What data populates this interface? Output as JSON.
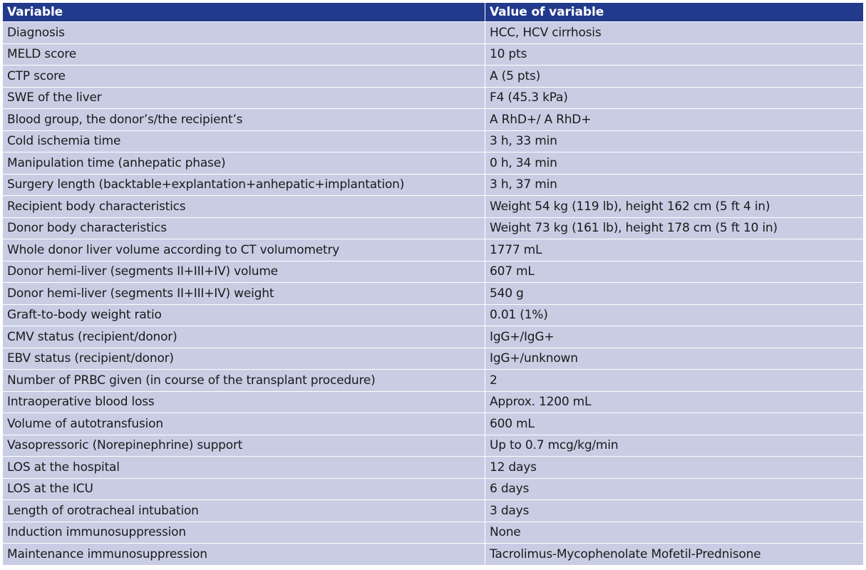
{
  "table": {
    "headers": [
      "Variable",
      "Value of variable"
    ],
    "rows": [
      [
        "Diagnosis",
        "HCC, HCV cirrhosis"
      ],
      [
        "MELD score",
        "10 pts"
      ],
      [
        "CTP score",
        "A (5 pts)"
      ],
      [
        "SWE of the liver",
        "F4 (45.3 kPa)"
      ],
      [
        "Blood group, the donor’s/the recipient’s",
        "A RhD+/ A RhD+"
      ],
      [
        "Cold ischemia time",
        "3 h, 33 min"
      ],
      [
        "Manipulation time (anhepatic phase)",
        "0 h, 34 min"
      ],
      [
        "Surgery length (backtable+explantation+anhepatic+implantation)",
        "3 h, 37 min"
      ],
      [
        "Recipient body characteristics",
        "Weight 54 kg (119 lb), height 162 cm (5 ft 4 in)"
      ],
      [
        "Donor body characteristics",
        "Weight 73 kg (161 lb), height 178 cm (5 ft 10 in)"
      ],
      [
        "Whole donor liver volume according to CT volumometry",
        "1777 mL"
      ],
      [
        "Donor hemi-liver (segments II+III+IV) volume",
        "607 mL"
      ],
      [
        "Donor hemi-liver (segments II+III+IV) weight",
        "540 g"
      ],
      [
        "Graft-to-body weight ratio",
        "0.01 (1%)"
      ],
      [
        "CMV status (recipient/donor)",
        "IgG+/IgG+"
      ],
      [
        "EBV status (recipient/donor)",
        "IgG+/unknown"
      ],
      [
        "Number of PRBC given (in course of the transplant procedure)",
        "2"
      ],
      [
        "Intraoperative blood loss",
        "Approx. 1200 mL"
      ],
      [
        "Volume of autotransfusion",
        "600 mL"
      ],
      [
        "Vasopressoric (Norepinephrine) support",
        "Up to 0.7 mcg/kg/min"
      ],
      [
        "LOS at the hospital",
        "12 days"
      ],
      [
        "LOS at the ICU",
        "6 days"
      ],
      [
        "Length of orotracheal intubation",
        "3 days"
      ],
      [
        "Induction immunosuppression",
        "None"
      ],
      [
        "Maintenance immunosuppression",
        "Tacrolimus-Mycophenolate Mofetil-Prednisone"
      ]
    ]
  },
  "colors": {
    "header_bg": "#223a8c",
    "row_bg": "#c9cde4",
    "grid_lines": "#ffffff"
  }
}
